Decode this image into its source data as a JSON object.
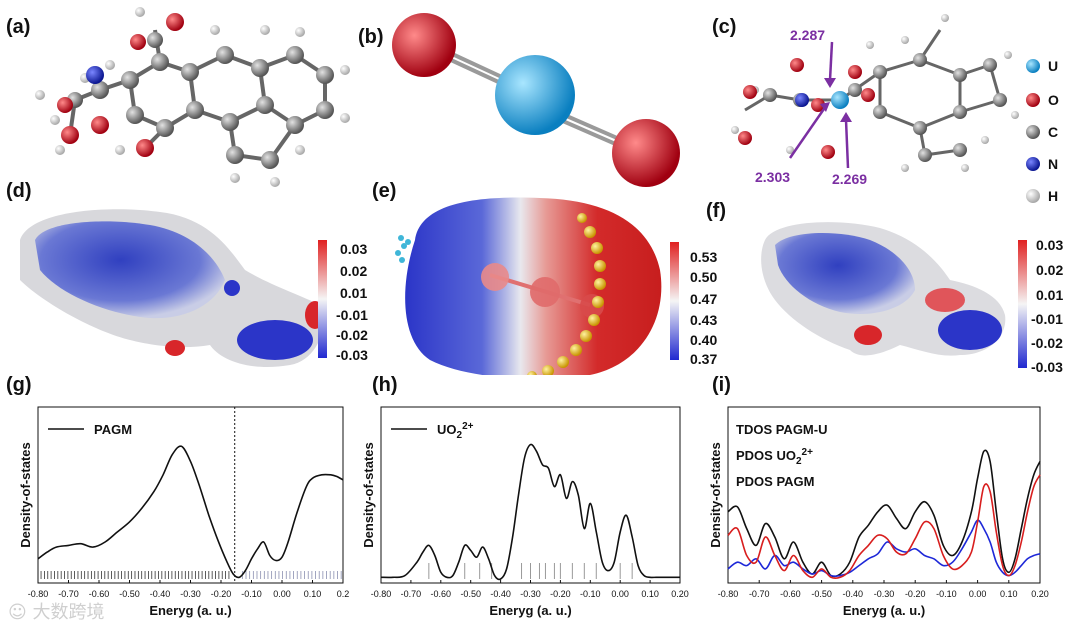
{
  "panels": {
    "a": "(a)",
    "b": "(b)",
    "c": "(c)",
    "d": "(d)",
    "e": "(e)",
    "f": "(f)",
    "g": "(g)",
    "h": "(h)",
    "i": "(i)"
  },
  "element_legend": [
    {
      "symbol": "U",
      "color": "#2aa7e0"
    },
    {
      "symbol": "O",
      "color": "#d0101a"
    },
    {
      "symbol": "C",
      "color": "#7a7a7a"
    },
    {
      "symbol": "N",
      "color": "#1a2ab8"
    },
    {
      "symbol": "H",
      "color": "#f0f0f0"
    }
  ],
  "bond_lengths": [
    "2.287",
    "2.303",
    "2.269"
  ],
  "colorbars": {
    "d": [
      "0.03",
      "0.02",
      "0.01",
      "-0.01",
      "-0.02",
      "-0.03"
    ],
    "e": [
      "0.53",
      "0.50",
      "0.47",
      "0.43",
      "0.40",
      "0.37"
    ],
    "f": [
      "0.03",
      "0.02",
      "0.01",
      "-0.01",
      "-0.02",
      "-0.03"
    ]
  },
  "colors": {
    "neg": "#2b35c8",
    "pos": "#d8262a",
    "mid": "#f2f2f2",
    "bond_label": "#7b2fa2"
  },
  "chart_data": [
    {
      "type": "line",
      "panel": "g",
      "xlabel": "Eneryg (a. u.)",
      "ylabel": "Density-of-states",
      "xlim": [
        -0.8,
        0.2
      ],
      "xticks": [
        "-0.80",
        "-0.70",
        "-0.60",
        "-0.50",
        "-0.40",
        "-0.30",
        "-0.20",
        "-0.10",
        "0.00",
        "0.10",
        "0.2"
      ],
      "fermi_line_x": -0.155,
      "series": [
        {
          "name": "PAGM",
          "color": "#111111",
          "x": [
            -0.8,
            -0.77,
            -0.74,
            -0.7,
            -0.66,
            -0.62,
            -0.58,
            -0.54,
            -0.5,
            -0.46,
            -0.42,
            -0.39,
            -0.36,
            -0.33,
            -0.3,
            -0.27,
            -0.24,
            -0.21,
            -0.18,
            -0.16,
            -0.14,
            -0.12,
            -0.1,
            -0.08,
            -0.06,
            -0.04,
            -0.02,
            0.0,
            0.02,
            0.05,
            0.08,
            0.1,
            0.13,
            0.16,
            0.18,
            0.2
          ],
          "y": [
            0.12,
            0.16,
            0.19,
            0.2,
            0.21,
            0.19,
            0.22,
            0.28,
            0.34,
            0.42,
            0.52,
            0.62,
            0.74,
            0.79,
            0.7,
            0.55,
            0.38,
            0.23,
            0.1,
            0.03,
            0.01,
            0.05,
            0.12,
            0.18,
            0.22,
            0.14,
            0.11,
            0.13,
            0.22,
            0.4,
            0.55,
            0.6,
            0.62,
            0.62,
            0.61,
            0.59
          ]
        }
      ]
    },
    {
      "type": "line",
      "panel": "h",
      "xlabel": "Eneryg (a. u.)",
      "ylabel": "Density-of-states",
      "xlim": [
        -0.8,
        0.2
      ],
      "xticks": [
        "-0.80",
        "-0.70",
        "-0.60",
        "-0.50",
        "-0.40",
        "-0.30",
        "-0.20",
        "-0.10",
        "0.00",
        "0.10",
        "0.20"
      ],
      "series": [
        {
          "name": "UO22+",
          "color": "#111111",
          "x": [
            -0.8,
            -0.76,
            -0.72,
            -0.68,
            -0.66,
            -0.64,
            -0.62,
            -0.6,
            -0.58,
            -0.56,
            -0.54,
            -0.52,
            -0.5,
            -0.48,
            -0.46,
            -0.44,
            -0.42,
            -0.4,
            -0.38,
            -0.36,
            -0.34,
            -0.32,
            -0.3,
            -0.28,
            -0.26,
            -0.24,
            -0.22,
            -0.2,
            -0.18,
            -0.16,
            -0.14,
            -0.12,
            -0.1,
            -0.08,
            -0.06,
            -0.04,
            -0.02,
            0.0,
            0.02,
            0.04,
            0.06,
            0.08,
            0.1,
            0.12,
            0.14,
            0.16,
            0.18,
            0.2
          ],
          "y": [
            0.01,
            0.01,
            0.02,
            0.1,
            0.16,
            0.2,
            0.14,
            0.04,
            0.01,
            0.02,
            0.1,
            0.2,
            0.17,
            0.13,
            0.19,
            0.12,
            0.02,
            0.0,
            0.06,
            0.25,
            0.5,
            0.72,
            0.8,
            0.76,
            0.68,
            0.66,
            0.55,
            0.62,
            0.48,
            0.58,
            0.5,
            0.3,
            0.45,
            0.28,
            0.1,
            0.05,
            0.1,
            0.28,
            0.38,
            0.25,
            0.08,
            0.02,
            0.01,
            0.01,
            0.01,
            0.01,
            0.01,
            0.01
          ]
        }
      ]
    },
    {
      "type": "line",
      "panel": "i",
      "xlabel": "Eneryg (a. u.)",
      "ylabel": "Density-of-states",
      "xlim": [
        -0.8,
        0.2
      ],
      "xticks": [
        "-0.80",
        "-0.70",
        "-0.60",
        "-0.50",
        "-0.40",
        "-0.30",
        "-0.20",
        "-0.10",
        "0.00",
        "0.10",
        "0.20"
      ],
      "series": [
        {
          "name": "TDOS PAGM-U",
          "color": "#111111",
          "x": [
            -0.8,
            -0.77,
            -0.74,
            -0.71,
            -0.68,
            -0.65,
            -0.62,
            -0.59,
            -0.56,
            -0.53,
            -0.5,
            -0.47,
            -0.44,
            -0.41,
            -0.38,
            -0.35,
            -0.32,
            -0.29,
            -0.26,
            -0.23,
            -0.2,
            -0.17,
            -0.14,
            -0.11,
            -0.08,
            -0.05,
            -0.02,
            0.0,
            0.02,
            0.04,
            0.06,
            0.08,
            0.1,
            0.12,
            0.14,
            0.16,
            0.18,
            0.2
          ],
          "y": [
            0.4,
            0.43,
            0.3,
            0.2,
            0.33,
            0.25,
            0.12,
            0.22,
            0.1,
            0.03,
            0.1,
            0.02,
            0.03,
            0.1,
            0.25,
            0.32,
            0.4,
            0.44,
            0.36,
            0.3,
            0.4,
            0.46,
            0.38,
            0.2,
            0.14,
            0.22,
            0.4,
            0.6,
            0.76,
            0.7,
            0.4,
            0.12,
            0.04,
            0.12,
            0.3,
            0.48,
            0.62,
            0.7
          ]
        },
        {
          "name": "PDOS UO22+",
          "color": "#1e28d8",
          "x": [
            -0.8,
            -0.77,
            -0.74,
            -0.71,
            -0.68,
            -0.65,
            -0.62,
            -0.59,
            -0.56,
            -0.53,
            -0.5,
            -0.47,
            -0.44,
            -0.41,
            -0.38,
            -0.35,
            -0.32,
            -0.29,
            -0.26,
            -0.23,
            -0.2,
            -0.17,
            -0.14,
            -0.11,
            -0.08,
            -0.05,
            -0.02,
            0.0,
            0.02,
            0.04,
            0.06,
            0.08,
            0.1,
            0.12,
            0.14,
            0.16,
            0.18,
            0.2
          ],
          "y": [
            0.06,
            0.1,
            0.08,
            0.12,
            0.06,
            0.14,
            0.08,
            0.1,
            0.06,
            0.03,
            0.05,
            0.02,
            0.02,
            0.04,
            0.08,
            0.12,
            0.15,
            0.22,
            0.18,
            0.16,
            0.18,
            0.14,
            0.12,
            0.08,
            0.1,
            0.18,
            0.28,
            0.35,
            0.3,
            0.22,
            0.1,
            0.04,
            0.02,
            0.04,
            0.08,
            0.12,
            0.14,
            0.15
          ]
        },
        {
          "name": "PDOS PAGM",
          "color": "#d81e1e",
          "x": [
            -0.8,
            -0.77,
            -0.74,
            -0.71,
            -0.68,
            -0.65,
            -0.62,
            -0.59,
            -0.56,
            -0.53,
            -0.5,
            -0.47,
            -0.44,
            -0.41,
            -0.38,
            -0.35,
            -0.32,
            -0.29,
            -0.26,
            -0.23,
            -0.2,
            -0.17,
            -0.14,
            -0.11,
            -0.08,
            -0.05,
            -0.02,
            0.0,
            0.02,
            0.04,
            0.06,
            0.08,
            0.1,
            0.12,
            0.14,
            0.16,
            0.18,
            0.2
          ],
          "y": [
            0.26,
            0.3,
            0.14,
            0.1,
            0.25,
            0.14,
            0.05,
            0.14,
            0.05,
            0.01,
            0.06,
            0.01,
            0.01,
            0.05,
            0.14,
            0.2,
            0.26,
            0.24,
            0.16,
            0.15,
            0.24,
            0.34,
            0.3,
            0.14,
            0.06,
            0.08,
            0.16,
            0.34,
            0.55,
            0.52,
            0.28,
            0.08,
            0.02,
            0.08,
            0.22,
            0.4,
            0.55,
            0.62
          ]
        }
      ]
    }
  ]
}
